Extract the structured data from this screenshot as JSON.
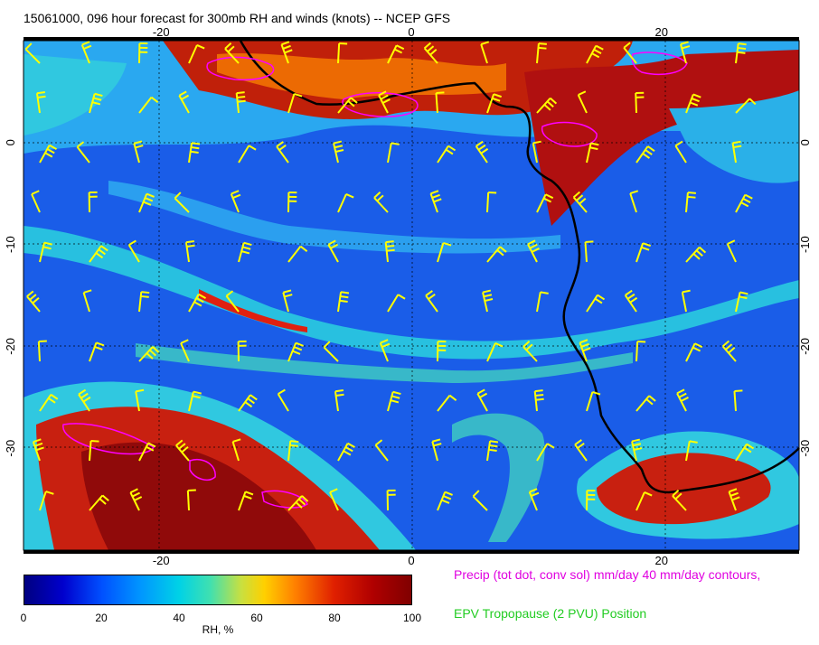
{
  "title": "15061000, 096 hour forecast for 300mb RH and winds (knots) -- NCEP GFS",
  "map": {
    "x_axis": {
      "range": [
        -31,
        31
      ],
      "ticks": [
        "-20",
        "0",
        "20"
      ],
      "tick_values": [
        -20,
        0,
        20
      ]
    },
    "y_axis": {
      "range": [
        -40,
        10
      ],
      "ticks": [
        "0",
        "-10",
        "-20",
        "-30"
      ],
      "tick_values": [
        0,
        -10,
        -20,
        -30
      ]
    },
    "grid": true,
    "wind_barb_color": "#ffff00",
    "coastline_color": "#000000",
    "precip_contour_color": "#ff00ff"
  },
  "colorbar": {
    "label": "RH, %",
    "ticks": [
      "0",
      "20",
      "40",
      "60",
      "80",
      "100"
    ],
    "tick_values": [
      0,
      20,
      40,
      60,
      80,
      100
    ]
  },
  "legend": {
    "precip": "Precip (tot dot, conv sol) mm/day 40 mm/day contours,",
    "epv": "EPV Tropopause (2 PVU) Position",
    "precip_color": "#ff00ff",
    "epv_color": "#22cc22"
  }
}
